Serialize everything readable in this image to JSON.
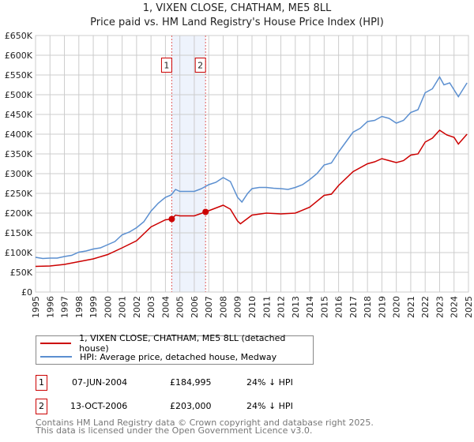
{
  "chart_data": {
    "type": "line",
    "title": "1, VIXEN CLOSE, CHATHAM, ME5 8LL",
    "subtitle": "Price paid vs. HM Land Registry's House Price Index (HPI)",
    "xlim": [
      1995,
      2025
    ],
    "ylim": [
      0,
      650000
    ],
    "y_ticks": [
      {
        "v": 0,
        "label": "£0"
      },
      {
        "v": 50000,
        "label": "£50K"
      },
      {
        "v": 100000,
        "label": "£100K"
      },
      {
        "v": 150000,
        "label": "£150K"
      },
      {
        "v": 200000,
        "label": "£200K"
      },
      {
        "v": 250000,
        "label": "£250K"
      },
      {
        "v": 300000,
        "label": "£300K"
      },
      {
        "v": 350000,
        "label": "£350K"
      },
      {
        "v": 400000,
        "label": "£400K"
      },
      {
        "v": 450000,
        "label": "£450K"
      },
      {
        "v": 500000,
        "label": "£500K"
      },
      {
        "v": 550000,
        "label": "£550K"
      },
      {
        "v": 600000,
        "label": "£600K"
      },
      {
        "v": 650000,
        "label": "£650K"
      }
    ],
    "x_ticks": [
      "1995",
      "1996",
      "1997",
      "1998",
      "1999",
      "2000",
      "2001",
      "2002",
      "2003",
      "2004",
      "2005",
      "2006",
      "2007",
      "2008",
      "2009",
      "2010",
      "2011",
      "2012",
      "2013",
      "2014",
      "2015",
      "2016",
      "2017",
      "2018",
      "2019",
      "2020",
      "2021",
      "2022",
      "2023",
      "2024",
      "2025"
    ],
    "grid": true,
    "series": [
      {
        "name": "1, VIXEN CLOSE, CHATHAM, ME5 8LL (detached house)",
        "color": "#cc0000",
        "points": [
          [
            1995,
            65000
          ],
          [
            1996,
            66000
          ],
          [
            1997,
            70000
          ],
          [
            1998,
            77000
          ],
          [
            1999,
            84000
          ],
          [
            2000,
            95000
          ],
          [
            2001,
            112000
          ],
          [
            2002,
            130000
          ],
          [
            2003,
            165000
          ],
          [
            2004,
            183000
          ],
          [
            2004.44,
            184995
          ],
          [
            2004.7,
            195000
          ],
          [
            2005,
            193000
          ],
          [
            2006,
            193000
          ],
          [
            2006.78,
            203000
          ],
          [
            2007,
            206000
          ],
          [
            2008,
            220000
          ],
          [
            2008.5,
            210000
          ],
          [
            2009,
            180000
          ],
          [
            2009.2,
            173000
          ],
          [
            2010,
            195000
          ],
          [
            2011,
            200000
          ],
          [
            2012,
            198000
          ],
          [
            2013,
            200000
          ],
          [
            2014,
            215000
          ],
          [
            2015,
            245000
          ],
          [
            2015.5,
            248000
          ],
          [
            2016,
            270000
          ],
          [
            2017,
            305000
          ],
          [
            2018,
            325000
          ],
          [
            2018.5,
            330000
          ],
          [
            2019,
            338000
          ],
          [
            2019.5,
            333000
          ],
          [
            2020,
            328000
          ],
          [
            2020.5,
            333000
          ],
          [
            2021,
            347000
          ],
          [
            2021.5,
            350000
          ],
          [
            2022,
            380000
          ],
          [
            2022.5,
            390000
          ],
          [
            2023,
            410000
          ],
          [
            2023.5,
            398000
          ],
          [
            2024,
            392000
          ],
          [
            2024.3,
            375000
          ],
          [
            2024.9,
            400000
          ]
        ]
      },
      {
        "name": "HPI: Average price, detached house, Medway",
        "color": "#5b8fd0",
        "points": [
          [
            1995,
            88000
          ],
          [
            1995.5,
            85000
          ],
          [
            1996,
            86000
          ],
          [
            1996.5,
            86000
          ],
          [
            1997,
            90000
          ],
          [
            1997.5,
            93000
          ],
          [
            1998,
            101000
          ],
          [
            1998.5,
            104000
          ],
          [
            1999,
            109000
          ],
          [
            1999.5,
            112000
          ],
          [
            2000,
            120000
          ],
          [
            2000.5,
            128000
          ],
          [
            2001,
            145000
          ],
          [
            2001.5,
            152000
          ],
          [
            2002,
            163000
          ],
          [
            2002.5,
            178000
          ],
          [
            2003,
            205000
          ],
          [
            2003.5,
            225000
          ],
          [
            2004,
            240000
          ],
          [
            2004.4,
            246000
          ],
          [
            2004.7,
            260000
          ],
          [
            2005,
            255000
          ],
          [
            2005.5,
            255000
          ],
          [
            2006,
            255000
          ],
          [
            2006.5,
            262000
          ],
          [
            2007,
            272000
          ],
          [
            2007.5,
            278000
          ],
          [
            2008,
            290000
          ],
          [
            2008.5,
            280000
          ],
          [
            2009,
            240000
          ],
          [
            2009.3,
            228000
          ],
          [
            2009.7,
            250000
          ],
          [
            2010,
            262000
          ],
          [
            2010.5,
            265000
          ],
          [
            2011,
            265000
          ],
          [
            2011.5,
            263000
          ],
          [
            2012,
            262000
          ],
          [
            2012.5,
            260000
          ],
          [
            2013,
            265000
          ],
          [
            2013.5,
            272000
          ],
          [
            2014,
            285000
          ],
          [
            2014.5,
            300000
          ],
          [
            2015,
            322000
          ],
          [
            2015.5,
            327000
          ],
          [
            2016,
            355000
          ],
          [
            2016.5,
            380000
          ],
          [
            2017,
            405000
          ],
          [
            2017.5,
            415000
          ],
          [
            2018,
            432000
          ],
          [
            2018.5,
            435000
          ],
          [
            2019,
            445000
          ],
          [
            2019.5,
            440000
          ],
          [
            2020,
            428000
          ],
          [
            2020.5,
            435000
          ],
          [
            2021,
            455000
          ],
          [
            2021.5,
            462000
          ],
          [
            2022,
            505000
          ],
          [
            2022.5,
            515000
          ],
          [
            2023,
            545000
          ],
          [
            2023.3,
            525000
          ],
          [
            2023.7,
            530000
          ],
          [
            2024.3,
            495000
          ],
          [
            2024.9,
            530000
          ]
        ]
      }
    ],
    "sales": [
      {
        "id": "1",
        "x": 2004.44,
        "price": 184995,
        "date": "07-JUN-2004",
        "price_label": "£184,995",
        "delta": "24% ↓ HPI"
      },
      {
        "id": "2",
        "x": 2006.78,
        "price": 203000,
        "date": "13-OCT-2006",
        "price_label": "£203,000",
        "delta": "24% ↓ HPI"
      }
    ],
    "annotation_y": 575000
  },
  "footer": {
    "line1": "Contains HM Land Registry data © Crown copyright and database right 2025.",
    "line2": "This data is licensed under the Open Government Licence v3.0."
  }
}
